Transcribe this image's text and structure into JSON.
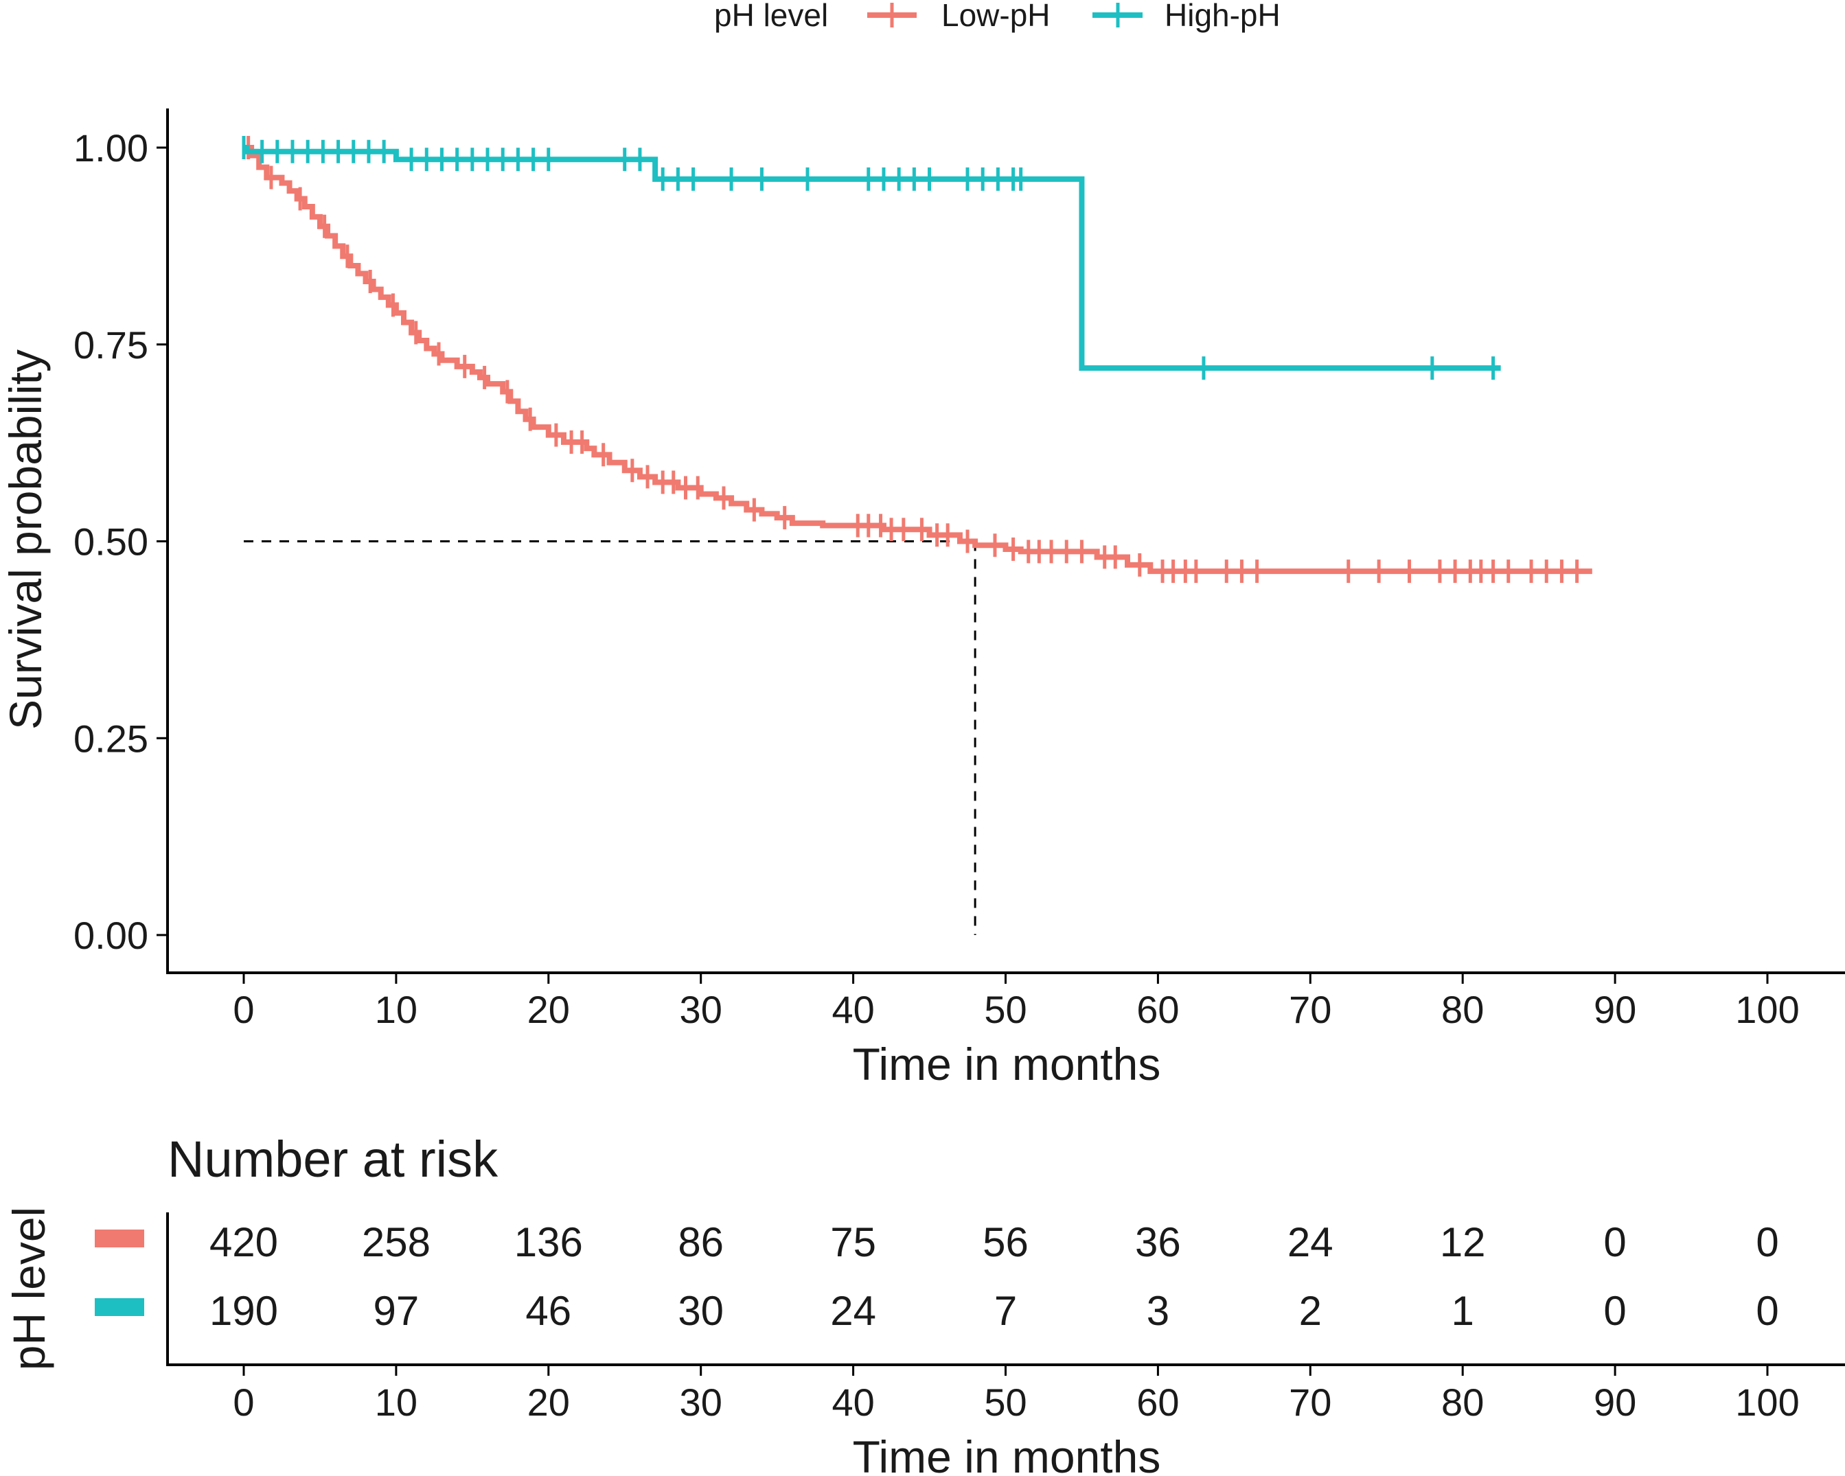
{
  "chart_data": {
    "type": "line",
    "subtype": "kaplan-meier-step",
    "legend": {
      "title": "pH level",
      "position": "top",
      "entries": [
        "Low-pH",
        "High-pH"
      ]
    },
    "xlabel": "Time in months",
    "ylabel": "Survival probability",
    "xlim": [
      0,
      100
    ],
    "ylim": [
      0,
      1
    ],
    "xticks": [
      0,
      10,
      20,
      30,
      40,
      50,
      60,
      70,
      80,
      90,
      100
    ],
    "yticks": [
      0,
      0.25,
      0.5,
      0.75,
      1.0
    ],
    "ytick_labels": [
      "0.00",
      "0.25",
      "0.50",
      "0.75",
      "1.00"
    ],
    "median_reference": {
      "y": 0.5,
      "x": 48
    },
    "series": [
      {
        "name": "Low-pH",
        "color": "#f07a70",
        "steps": [
          [
            0,
            1.0
          ],
          [
            0.5,
            0.99
          ],
          [
            1,
            0.975
          ],
          [
            1.5,
            0.962
          ],
          [
            2.5,
            0.955
          ],
          [
            3,
            0.945
          ],
          [
            3.5,
            0.935
          ],
          [
            4,
            0.925
          ],
          [
            4.5,
            0.912
          ],
          [
            5,
            0.9
          ],
          [
            5.5,
            0.888
          ],
          [
            6,
            0.875
          ],
          [
            6.5,
            0.862
          ],
          [
            7,
            0.85
          ],
          [
            7.5,
            0.84
          ],
          [
            8,
            0.83
          ],
          [
            8.5,
            0.82
          ],
          [
            9,
            0.81
          ],
          [
            9.5,
            0.8
          ],
          [
            10,
            0.79
          ],
          [
            10.5,
            0.778
          ],
          [
            11,
            0.765
          ],
          [
            11.5,
            0.755
          ],
          [
            12,
            0.745
          ],
          [
            12.5,
            0.738
          ],
          [
            13,
            0.73
          ],
          [
            14,
            0.722
          ],
          [
            15,
            0.715
          ],
          [
            15.5,
            0.708
          ],
          [
            16,
            0.7
          ],
          [
            17,
            0.69
          ],
          [
            17.5,
            0.678
          ],
          [
            18,
            0.665
          ],
          [
            18.5,
            0.655
          ],
          [
            19,
            0.645
          ],
          [
            20,
            0.635
          ],
          [
            21,
            0.626
          ],
          [
            22.5,
            0.618
          ],
          [
            23,
            0.61
          ],
          [
            24,
            0.6
          ],
          [
            25,
            0.59
          ],
          [
            26,
            0.582
          ],
          [
            27,
            0.575
          ],
          [
            28.5,
            0.568
          ],
          [
            30,
            0.56
          ],
          [
            31,
            0.555
          ],
          [
            32,
            0.548
          ],
          [
            33,
            0.54
          ],
          [
            34,
            0.535
          ],
          [
            35,
            0.53
          ],
          [
            36,
            0.523
          ],
          [
            38,
            0.52
          ],
          [
            42,
            0.515
          ],
          [
            45,
            0.508
          ],
          [
            47,
            0.5
          ],
          [
            48,
            0.495
          ],
          [
            50,
            0.49
          ],
          [
            51,
            0.487
          ],
          [
            56,
            0.48
          ],
          [
            58,
            0.47
          ],
          [
            59.5,
            0.462
          ],
          [
            88.5,
            0.462
          ]
        ],
        "censor_times": [
          0.3,
          1.8,
          3.7,
          5.3,
          6.8,
          8.3,
          9.8,
          11.3,
          12.8,
          14.5,
          15.8,
          17.3,
          18.8,
          20.5,
          21.5,
          22.2,
          23.6,
          25.5,
          26.5,
          27.5,
          28.2,
          29,
          29.8,
          31.5,
          33.5,
          35.5,
          40.3,
          41,
          41.8,
          42.5,
          43.3,
          44.5,
          45.5,
          46.2,
          47.5,
          49.3,
          50.5,
          51.5,
          52.2,
          53,
          54,
          55,
          56.5,
          57.2,
          58.8,
          60.3,
          61,
          61.8,
          62.5,
          64.5,
          65.5,
          66.5,
          72.5,
          74.5,
          76.5,
          78.5,
          79.5,
          80.5,
          81.2,
          82,
          83,
          84.5,
          85.5,
          86.5,
          87.5
        ]
      },
      {
        "name": "High-pH",
        "color": "#1dbfc2",
        "steps": [
          [
            0,
            1.0
          ],
          [
            0.2,
            0.995
          ],
          [
            10,
            0.985
          ],
          [
            27,
            0.96
          ],
          [
            55,
            0.72
          ],
          [
            82.5,
            0.72
          ]
        ],
        "censor_times": [
          0,
          1.2,
          2.2,
          3.2,
          4.2,
          5.2,
          6.2,
          7.2,
          8.2,
          9.2,
          11,
          12,
          13,
          14,
          15,
          16,
          17,
          18,
          19,
          20,
          25,
          26,
          27.5,
          28.5,
          29.5,
          32,
          34,
          37,
          41,
          42,
          43,
          44,
          45,
          47.5,
          48.5,
          49.5,
          50.5,
          51,
          63,
          78,
          82
        ]
      }
    ]
  },
  "risk_table": {
    "title": "Number at risk",
    "ylabel": "pH level",
    "xlabel": "Time in months",
    "times": [
      0,
      10,
      20,
      30,
      40,
      50,
      60,
      70,
      80,
      90,
      100
    ],
    "rows": [
      {
        "name": "Low-pH",
        "color": "#f07a70",
        "counts": [
          "420",
          "258",
          "136",
          "86",
          "75",
          "56",
          "36",
          "24",
          "12",
          "0",
          "0"
        ]
      },
      {
        "name": "High-pH",
        "color": "#1dbfc2",
        "counts": [
          "190",
          "97",
          "46",
          "30",
          "24",
          "7",
          "3",
          "2",
          "1",
          "0",
          "0"
        ]
      }
    ]
  }
}
